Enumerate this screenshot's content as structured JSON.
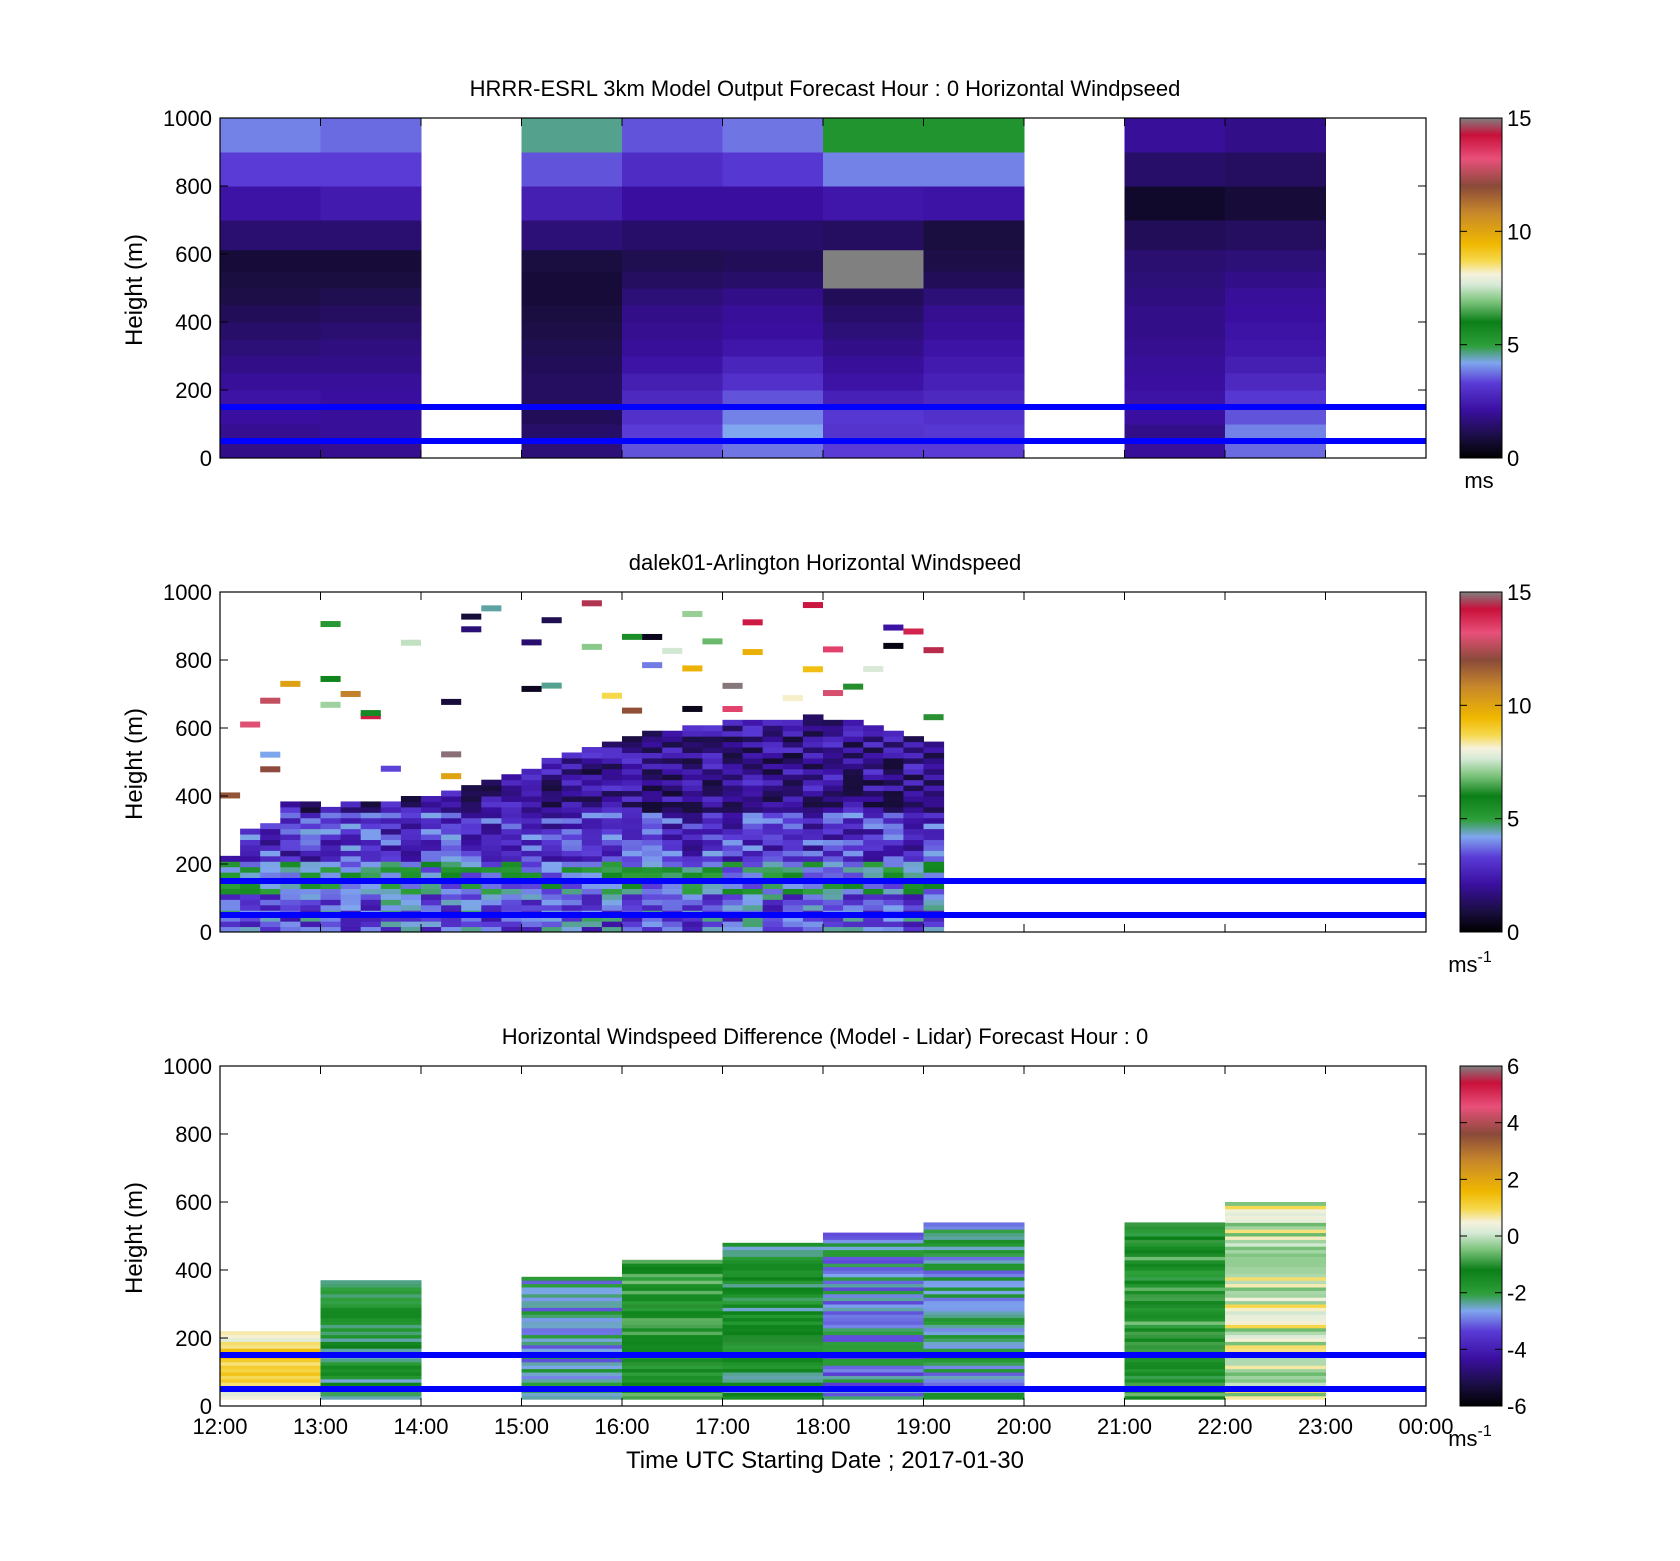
{
  "figure": {
    "x_tick_labels": [
      "12:00",
      "13:00",
      "14:00",
      "15:00",
      "16:00",
      "17:00",
      "18:00",
      "19:00",
      "20:00",
      "21:00",
      "22:00",
      "23:00",
      "00:00"
    ],
    "x_axis_label": "Time UTC  Starting Date ; 2017-01-30",
    "reference_line_heights_m": [
      50,
      150
    ],
    "reference_line_color": "#0000ff"
  },
  "chart_data": [
    {
      "type": "heatmap",
      "title": "HRRR-ESRL 3km Model Output   Forecast Hour : 0 Horizontal Windpseed",
      "ylabel": "Height (m)",
      "ylim": [
        0,
        1000
      ],
      "yticks": [
        0,
        200,
        400,
        600,
        800,
        1000
      ],
      "colorbar": {
        "ticks": [
          0,
          5,
          10,
          15
        ],
        "range": [
          0,
          15
        ],
        "unit": "ms",
        "unit_sup": ""
      },
      "x_columns": [
        "12:00",
        "13:00",
        "14:00",
        "15:00",
        "16:00",
        "17:00",
        "18:00",
        "19:00",
        "20:00",
        "21:00",
        "22:00",
        "23:00"
      ],
      "y_levels": [
        25,
        75,
        125,
        175,
        225,
        275,
        325,
        375,
        425,
        475,
        525,
        575,
        650,
        750,
        850,
        950
      ],
      "values": [
        [
          1.8,
          1.9,
          null,
          1.6,
          3.5,
          3.8,
          3.3,
          3.3,
          null,
          2.0,
          3.7,
          null
        ],
        [
          1.9,
          2.0,
          null,
          1.4,
          3.3,
          4.2,
          3.1,
          3.2,
          null,
          1.8,
          3.9,
          null
        ],
        [
          2.1,
          2.0,
          null,
          1.2,
          3.0,
          3.9,
          3.2,
          3.0,
          null,
          2.1,
          3.5,
          null
        ],
        [
          2.2,
          2.1,
          null,
          1.3,
          2.8,
          3.5,
          2.6,
          2.8,
          null,
          2.2,
          3.2,
          null
        ],
        [
          2.0,
          2.0,
          null,
          1.3,
          2.5,
          3.0,
          2.2,
          2.6,
          null,
          2.1,
          2.8,
          null
        ],
        [
          1.8,
          1.8,
          null,
          1.2,
          2.2,
          2.7,
          2.0,
          2.4,
          null,
          2.0,
          2.5,
          null
        ],
        [
          1.6,
          1.7,
          null,
          1.1,
          2.0,
          2.3,
          1.8,
          2.2,
          null,
          1.9,
          2.3,
          null
        ],
        [
          1.4,
          1.5,
          null,
          1.0,
          1.9,
          2.1,
          1.6,
          2.0,
          null,
          1.8,
          2.2,
          null
        ],
        [
          1.2,
          1.3,
          null,
          0.9,
          1.8,
          2.0,
          1.4,
          1.9,
          null,
          1.8,
          2.1,
          null
        ],
        [
          1.0,
          1.1,
          null,
          0.8,
          1.6,
          1.8,
          1.2,
          1.6,
          null,
          1.7,
          2.0,
          null
        ],
        [
          0.9,
          0.9,
          null,
          0.8,
          1.3,
          1.4,
          15.5,
          1.2,
          null,
          1.6,
          1.8,
          null
        ],
        [
          0.8,
          0.8,
          null,
          0.9,
          1.1,
          1.2,
          15.5,
          1.0,
          null,
          1.5,
          1.6,
          null
        ],
        [
          1.5,
          1.5,
          null,
          1.6,
          1.4,
          1.4,
          1.3,
          0.9,
          null,
          1.2,
          1.3,
          null
        ],
        [
          2.2,
          2.4,
          null,
          2.5,
          2.1,
          2.1,
          2.3,
          2.2,
          null,
          0.6,
          0.8,
          null
        ],
        [
          3.3,
          3.3,
          null,
          3.5,
          2.9,
          3.2,
          3.9,
          3.9,
          null,
          1.4,
          1.3,
          null
        ],
        [
          3.9,
          3.7,
          null,
          4.6,
          3.5,
          3.8,
          5.3,
          5.3,
          null,
          2.0,
          1.8,
          null
        ]
      ]
    },
    {
      "type": "heatmap",
      "title": "dalek01-Arlington  Horizontal Windspeed",
      "ylabel": "Height (m)",
      "ylim": [
        0,
        1000
      ],
      "yticks": [
        0,
        200,
        400,
        600,
        800,
        1000
      ],
      "colorbar": {
        "ticks": [
          0,
          5,
          10,
          15
        ],
        "range": [
          0,
          15
        ],
        "unit": "ms",
        "unit_sup": "-1"
      },
      "x_start_hours": 12.0,
      "x_step_hours": 0.2,
      "y_level_step_m": 16,
      "approx_top_height_m_per_column": [
        220,
        300,
        310,
        380,
        370,
        360,
        370,
        380,
        380,
        390,
        400,
        410,
        420,
        440,
        460,
        480,
        500,
        520,
        540,
        560,
        570,
        580,
        590,
        600,
        600,
        610,
        620,
        620,
        620,
        630,
        620,
        610,
        600,
        580,
        570,
        560
      ],
      "approx_mean_speed_by_layer": [
        {
          "layer_m": [
            0,
            100
          ],
          "speed": 3.5
        },
        {
          "layer_m": [
            100,
            200
          ],
          "speed": 4.5
        },
        {
          "layer_m": [
            200,
            350
          ],
          "speed": 3.0
        },
        {
          "layer_m": [
            350,
            600
          ],
          "speed": 2.0
        }
      ]
    },
    {
      "type": "heatmap",
      "title": "Horizontal Windspeed Difference (Model - Lidar) Forecast Hour : 0",
      "ylabel": "Height (m)",
      "ylim": [
        0,
        1000
      ],
      "yticks": [
        0,
        200,
        400,
        600,
        800,
        1000
      ],
      "colorbar": {
        "ticks": [
          -6,
          -4,
          -2,
          0,
          2,
          4,
          6
        ],
        "range": [
          -6,
          6
        ],
        "unit": "ms",
        "unit_sup": "-1"
      },
      "x_columns": [
        "12:00",
        "13:00",
        "14:00",
        "15:00",
        "16:00",
        "17:00",
        "18:00",
        "19:00",
        "20:00",
        "21:00",
        "22:00",
        "23:00"
      ],
      "column_top_height_m": [
        220,
        370,
        null,
        380,
        430,
        480,
        510,
        540,
        null,
        540,
        600,
        null
      ],
      "column_mean_difference": [
        0.8,
        -1.8,
        null,
        -2.5,
        -1.3,
        -1.8,
        -2.6,
        -2.4,
        null,
        -1.3,
        0.2,
        null
      ]
    }
  ]
}
